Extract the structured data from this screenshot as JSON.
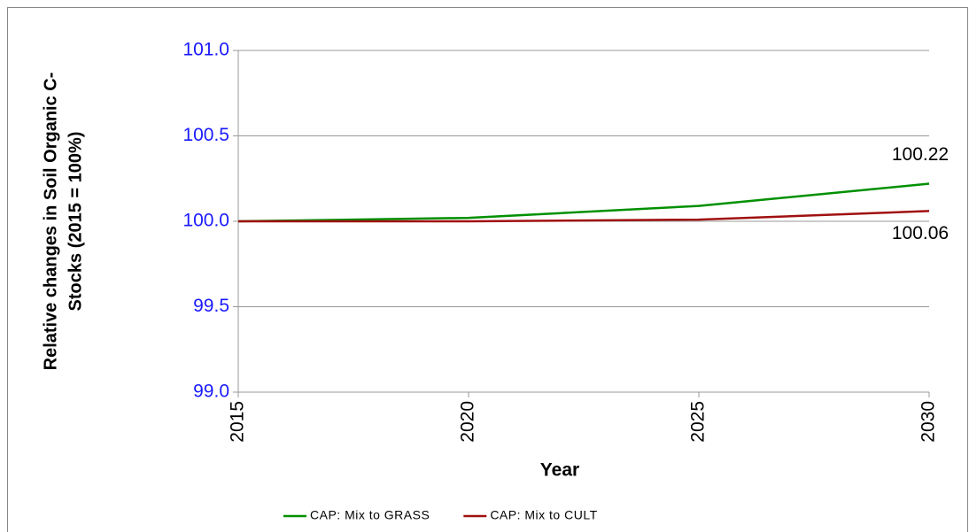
{
  "chart_data": {
    "type": "line",
    "ylabel": [
      "Relative changes in Soil Organic C-",
      "Stocks (2015 = 100%)"
    ],
    "xlabel": "Year",
    "x": [
      2015,
      2020,
      2025,
      2030
    ],
    "series": [
      {
        "name": "CAP: Mix to GRASS",
        "color": "#009000",
        "values": [
          100.0,
          100.02,
          100.09,
          100.22
        ]
      },
      {
        "name": "CAP: Mix to CULT",
        "color": "#a01010",
        "values": [
          100.0,
          100.0,
          100.01,
          100.06
        ]
      }
    ],
    "xlim": [
      2015,
      2030
    ],
    "xticks": [
      2015,
      2020,
      2025,
      2030
    ],
    "ylim": [
      99.0,
      101.0
    ],
    "yticks": [
      {
        "value": 99.0,
        "label": "99.0"
      },
      99.5,
      {
        "value": 100.0,
        "label": "100.0"
      },
      100.5,
      {
        "value": 101.0,
        "label": "101.0"
      }
    ],
    "grid": true,
    "legend": "bottom"
  }
}
